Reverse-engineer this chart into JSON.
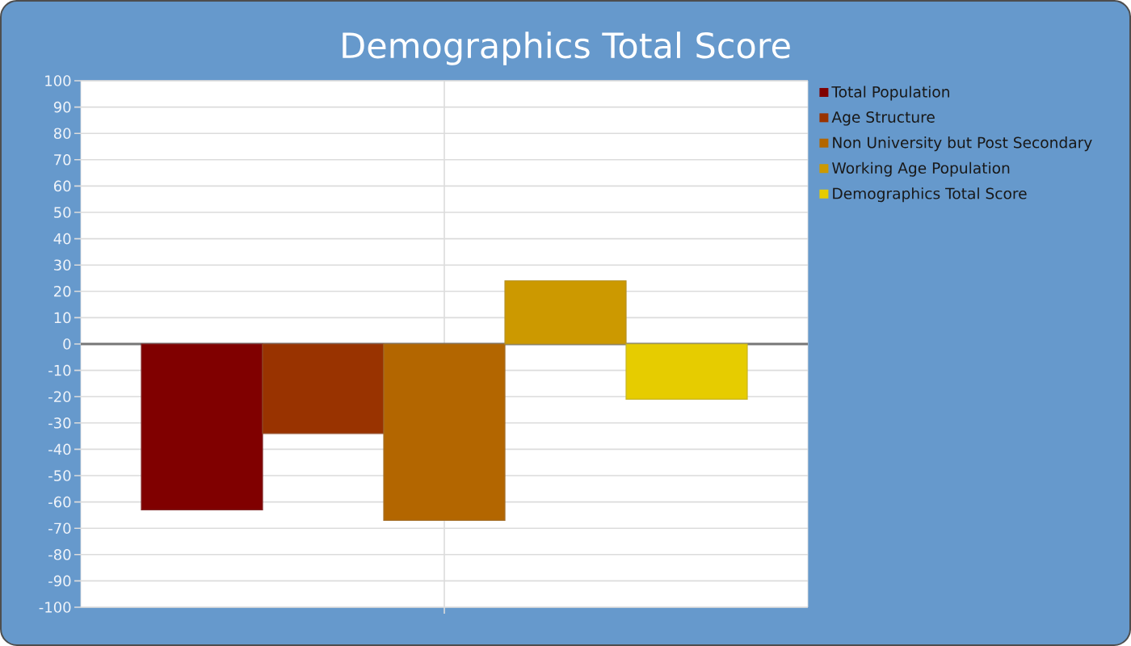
{
  "chart_data": {
    "type": "bar",
    "title": "Demographics Total Score",
    "categories": [
      null
    ],
    "series": [
      {
        "name": "Total Population",
        "color": "#800000",
        "values": [
          -63
        ]
      },
      {
        "name": "Age Structure",
        "color": "#993300",
        "values": [
          -34
        ]
      },
      {
        "name": "Non University but Post Secondary",
        "color": "#b36600",
        "values": [
          -67
        ]
      },
      {
        "name": "Working Age Population",
        "color": "#cc9900",
        "values": [
          24
        ]
      },
      {
        "name": "Demographics Total Score",
        "color": "#e6cc00",
        "values": [
          -21
        ]
      }
    ],
    "ylim": [
      -100,
      100
    ],
    "yticks": [
      -100,
      -90,
      -80,
      -70,
      -60,
      -50,
      -40,
      -30,
      -20,
      -10,
      0,
      10,
      20,
      30,
      40,
      50,
      60,
      70,
      80,
      90,
      100
    ],
    "grid": true,
    "legend": "top right"
  }
}
